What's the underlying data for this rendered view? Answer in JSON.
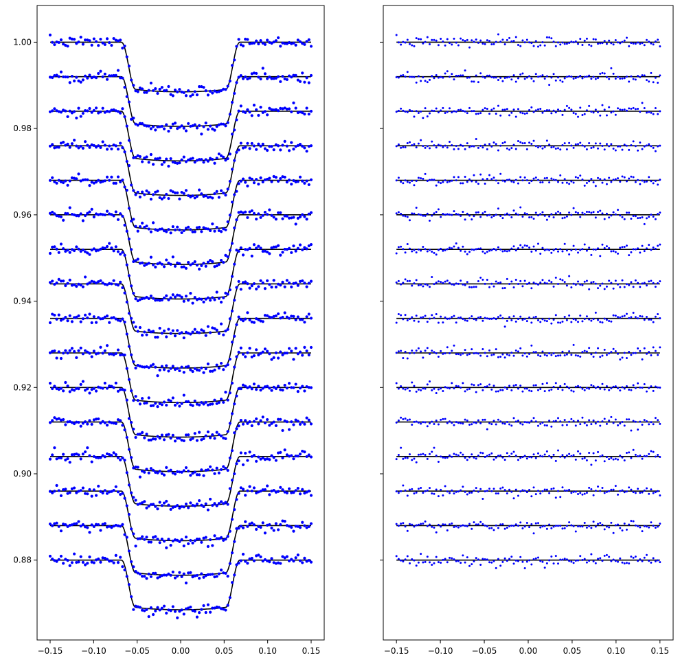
{
  "chart_data": [
    {
      "type": "scatter",
      "title": "",
      "xlabel": "",
      "ylabel": "",
      "xlim": [
        -0.165,
        0.165
      ],
      "ylim": [
        0.8615,
        1.0085
      ],
      "xticks": [
        -0.15,
        -0.1,
        -0.05,
        0.0,
        0.05,
        0.1,
        0.15
      ],
      "xtick_labels": [
        "−0.15",
        "−0.10",
        "−0.05",
        "0.00",
        "0.05",
        "0.10",
        "0.15"
      ],
      "yticks": [
        0.88,
        0.9,
        0.92,
        0.94,
        0.96,
        0.98,
        1.0
      ],
      "ytick_labels": [
        "0.88",
        "0.90",
        "0.92",
        "0.94",
        "0.96",
        "0.98",
        "1.00"
      ],
      "x_range": [
        -0.15,
        0.15
      ],
      "series_count": 16,
      "baseline_offsets": [
        1.0,
        0.992,
        0.984,
        0.976,
        0.968,
        0.96,
        0.952,
        0.944,
        0.936,
        0.928,
        0.92,
        0.912,
        0.904,
        0.896,
        0.888,
        0.88
      ],
      "transit_depth": 0.0115,
      "transit_full_start": -0.052,
      "transit_full_end": 0.052,
      "transit_contact_start": -0.068,
      "transit_contact_end": 0.068,
      "noise_scatter": 0.0006,
      "points_per_series": 120,
      "marker_color": "#0000ff",
      "line_color": "#000000",
      "grid": false,
      "legend": "none",
      "seed": 7
    },
    {
      "type": "scatter",
      "title": "",
      "xlabel": "",
      "ylabel": "",
      "xlim": [
        -0.165,
        0.165
      ],
      "ylim": [
        0.8615,
        1.0085
      ],
      "xticks": [
        -0.15,
        -0.1,
        -0.05,
        0.0,
        0.05,
        0.1,
        0.15
      ],
      "xtick_labels": [
        "−0.15",
        "−0.10",
        "−0.05",
        "0.00",
        "0.05",
        "0.10",
        "0.15"
      ],
      "yticks": [
        0.88,
        0.9,
        0.92,
        0.94,
        0.96,
        0.98,
        1.0
      ],
      "ytick_labels": [],
      "x_range": [
        -0.15,
        0.15
      ],
      "series_count": 16,
      "baseline_offsets": [
        1.0,
        0.992,
        0.984,
        0.976,
        0.968,
        0.96,
        0.952,
        0.944,
        0.936,
        0.928,
        0.92,
        0.912,
        0.904,
        0.896,
        0.888,
        0.88
      ],
      "noise_scatter": 0.0006,
      "points_per_series": 120,
      "marker_color": "#0000ff",
      "line_color": "#000000",
      "grid": false,
      "legend": "none",
      "seed": 7
    }
  ]
}
